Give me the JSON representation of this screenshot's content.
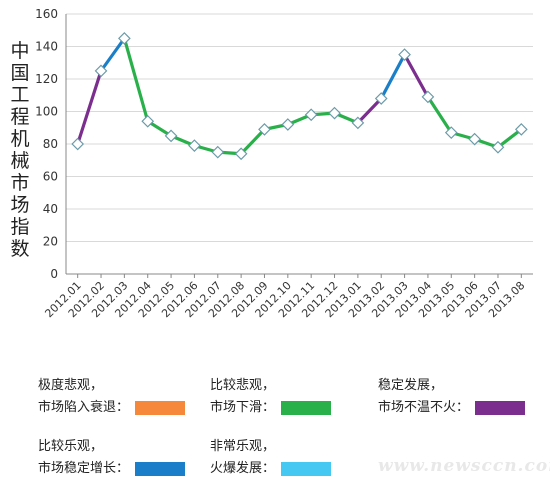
{
  "chart_data": {
    "type": "line",
    "ylabel": "中国工程机械市场指数",
    "ylim": [
      0,
      160
    ],
    "yticks": [
      0,
      20,
      40,
      60,
      80,
      100,
      120,
      140,
      160
    ],
    "grid": true,
    "categories": [
      "2012.01",
      "2012.02",
      "2012.03",
      "2012.04",
      "2012.05",
      "2012.06",
      "2012.07",
      "2012.08",
      "2012.09",
      "2012.10",
      "2012.11",
      "2012.12",
      "2013.01",
      "2013.02",
      "2013.03",
      "2013.04",
      "2013.05",
      "2013.06",
      "2013.07",
      "2013.08"
    ],
    "values": [
      80,
      125,
      145,
      94,
      85,
      79,
      75,
      74,
      89,
      92,
      98,
      99,
      93,
      108,
      135,
      109,
      87,
      83,
      78,
      89
    ],
    "segment_colors": [
      "#7b2e8e",
      "#1a7fc8",
      "#2ab04a",
      "#2ab04a",
      "#2ab04a",
      "#2ab04a",
      "#2ab04a",
      "#2ab04a",
      "#2ab04a",
      "#2ab04a",
      "#2ab04a",
      "#2ab04a",
      "#7b2e8e",
      "#1a7fc8",
      "#7b2e8e",
      "#2ab04a",
      "#2ab04a",
      "#2ab04a",
      "#2ab04a"
    ]
  },
  "legend": [
    {
      "line1": "极度悲观，",
      "line2": "市场陷入衰退：",
      "color": "#f5883a"
    },
    {
      "line1": "比较悲观，",
      "line2": "市场下滑：",
      "color": "#2ab04a"
    },
    {
      "line1": "稳定发展，",
      "line2": "市场不温不火：",
      "color": "#7b2e8e"
    },
    {
      "line1": "比较乐观，",
      "line2": "市场稳定增长：",
      "color": "#1a7fc8"
    },
    {
      "line1": "非常乐观，",
      "line2": "火爆发展：",
      "color": "#45c8f2"
    }
  ],
  "watermark": "www.newsccn.com"
}
